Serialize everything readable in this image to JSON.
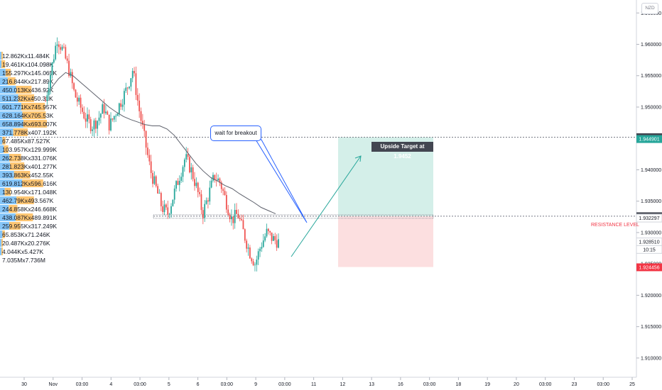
{
  "header": {
    "currency_badge": "NZD"
  },
  "chart_data": {
    "type": "candlestick",
    "price_axis": {
      "ticks": [
        "1.965000",
        "1.960000",
        "1.955000",
        "1.950000",
        "1.945000",
        "1.940000",
        "1.935000",
        "1.930000",
        "1.925000",
        "1.920000",
        "1.915000",
        "1.910000"
      ],
      "ylim": [
        1.9075,
        1.9665
      ]
    },
    "time_axis": {
      "ticks": [
        "30",
        "Nov",
        "03:00",
        "4",
        "03:00",
        "5",
        "6",
        "03:00",
        "9",
        "03:00",
        "11",
        "12",
        "13",
        "16",
        "03:00",
        "18",
        "19",
        "20",
        "03:00",
        "23",
        "03:00",
        "25"
      ]
    },
    "price_badges": [
      {
        "label": "1.945200",
        "value": 1.9452,
        "color": "#434651"
      },
      {
        "label": "1.944901",
        "value": 1.9449,
        "color": "#26a69a"
      },
      {
        "label": "1.932596",
        "value": 1.9326,
        "color": "#434651"
      },
      {
        "label": "1.932297",
        "value": 1.9323,
        "color": "#ffffff"
      },
      {
        "label": "1.928510",
        "value": 1.92851,
        "color": "#ffffff"
      },
      {
        "label": "10:15",
        "value": 1.9273,
        "color": "#ffffff"
      },
      {
        "label": "1.924456",
        "value": 1.92446,
        "color": "#f23645"
      }
    ],
    "volume_profile": [
      "12.862Kx11.484K",
      "19.461Kx104.098K",
      "155.297Kx145.065K",
      "216.844Kx217.89K",
      "450.013Kx436.92K",
      "511.232Kx450.31K",
      "601.771Kx745.957K",
      "628.164Kx705.53K",
      "658.894Kx693.007K",
      "371.778Kx407.192K",
      "67.485Kx87.527K",
      "103.957Kx129.999K",
      "262.738Kx331.076K",
      "281.823Kx401.277K",
      "393.863Kx452.55K",
      "619.812Kx596.616K",
      "130.954Kx171.048K",
      "462.79Kx493.567K",
      "244.858Kx246.668K",
      "438.087Kx489.891K",
      "259.955Kx317.249K",
      "65.853Kx71.246K",
      "20.487Kx20.276K",
      "4.044Kx5.427K",
      "7.035Mx7.736M"
    ],
    "price_path": [
      1.951,
      1.956,
      1.961,
      1.959,
      1.956,
      1.952,
      1.95,
      1.948,
      1.947,
      1.948,
      1.95,
      1.947,
      1.949,
      1.951,
      1.953,
      1.956,
      1.95,
      1.945,
      1.94,
      1.937,
      1.934,
      1.933,
      1.936,
      1.939,
      1.942,
      1.94,
      1.937,
      1.933,
      1.936,
      1.939,
      1.938,
      1.935,
      1.932,
      1.933,
      1.93,
      1.927,
      1.925,
      1.928,
      1.93,
      1.929,
      1.9285
    ],
    "moving_average": [
      1.953,
      1.9545,
      1.9555,
      1.955,
      1.954,
      1.953,
      1.952,
      1.951,
      1.95,
      1.9492,
      1.9485,
      1.948,
      1.9476,
      1.9472,
      1.947,
      1.947,
      1.9465,
      1.9455,
      1.944,
      1.9425,
      1.941,
      1.9398,
      1.9388,
      1.9382,
      1.9375,
      1.937,
      1.9362,
      1.9355,
      1.9348,
      1.934,
      1.9335,
      1.933
    ],
    "annotations": {
      "callout_text": "wait for breakout",
      "target_label": "Upside Target at 1.9452",
      "resistance_label": "RESISTANCE LEVEL",
      "resistance_level": 1.9326,
      "target_level": 1.9452,
      "stop_level": 1.9245
    },
    "colors": {
      "up": "#26a69a",
      "down": "#ef5350",
      "profit_zone": "#d4efe9",
      "loss_zone": "#fcdfe0",
      "volume_up": "#2196f3",
      "volume_down": "#ff9800"
    }
  }
}
